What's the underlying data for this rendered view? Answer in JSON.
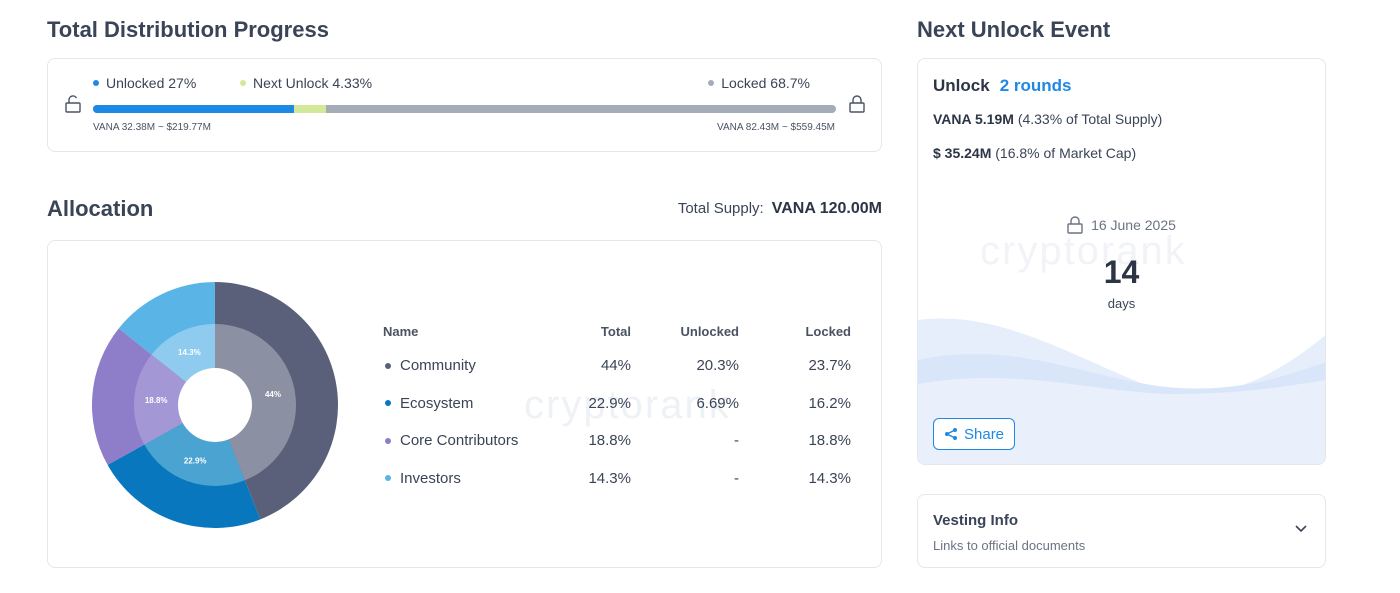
{
  "distribution": {
    "title": "Total Distribution Progress",
    "unlocked_label": "Unlocked 27%",
    "next_unlock_label": "Next Unlock 4.33%",
    "locked_label": "Locked 68.7%",
    "unlocked_value": "VANA 32.38M ~ $219.77M",
    "locked_value": "VANA 82.43M ~ $559.45M",
    "unlocked_pct": 27,
    "next_unlock_pct": 4.33,
    "locked_pct": 68.7,
    "colors": {
      "unlocked": "#1e88e5",
      "next_unlock": "#d4e89a",
      "locked": "#a4acb8"
    }
  },
  "allocation": {
    "title": "Allocation",
    "total_supply_label": "Total Supply:",
    "total_supply_value": "VANA 120.00M",
    "columns": {
      "name": "Name",
      "total": "Total",
      "unlocked": "Unlocked",
      "locked": "Locked"
    },
    "rows": [
      {
        "name": "Community",
        "total": "44%",
        "unlocked": "20.3%",
        "locked": "23.7%",
        "color": "#5a6079"
      },
      {
        "name": "Ecosystem",
        "total": "22.9%",
        "unlocked": "6.69%",
        "locked": "16.2%",
        "color": "#0877bd"
      },
      {
        "name": "Core Contributors",
        "total": "18.8%",
        "unlocked": "-",
        "locked": "18.8%",
        "color": "#8e7ec9"
      },
      {
        "name": "Investors",
        "total": "14.3%",
        "unlocked": "-",
        "locked": "14.3%",
        "color": "#5ab4e6"
      }
    ],
    "pie_labels": {
      "community": "44%",
      "ecosystem": "22.9%",
      "core": "18.8%",
      "investors": "14.3%"
    }
  },
  "chart_data": {
    "type": "pie",
    "categories": [
      "Community",
      "Ecosystem",
      "Core Contributors",
      "Investors"
    ],
    "values": [
      44,
      22.9,
      18.8,
      14.3
    ],
    "unlocked": [
      20.3,
      6.69,
      0,
      0
    ],
    "locked": [
      23.7,
      16.2,
      18.8,
      14.3
    ],
    "colors": {
      "outer": [
        "#5a6079",
        "#0877bd",
        "#8e7ec9",
        "#5ab4e6"
      ],
      "inner": [
        "#8b90a3",
        "#4aa3d1",
        "#a397d6",
        "#8ecbef"
      ]
    }
  },
  "next_unlock": {
    "title": "Next Unlock Event",
    "unlock_label": "Unlock",
    "rounds": "2 rounds",
    "token_amount": "VANA 5.19M",
    "token_detail": "(4.33% of Total Supply)",
    "usd_amount": "$ 35.24M",
    "usd_detail": "(16.8% of Market Cap)",
    "date": "16 June 2025",
    "days": "14",
    "days_label": "days",
    "share_label": "Share"
  },
  "vesting": {
    "title": "Vesting Info",
    "subtitle": "Links to official documents"
  },
  "watermark": "cryptorank"
}
